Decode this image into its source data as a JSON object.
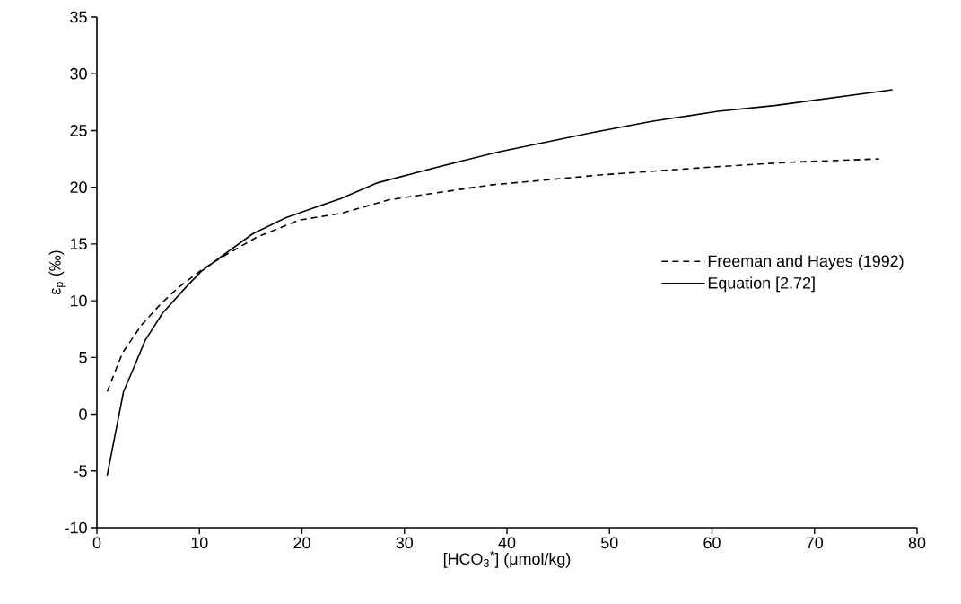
{
  "chart_data": {
    "type": "line",
    "xlabel": "[HCO$_{3}$$^{*}$] (μmol/kg)",
    "ylabel": "ε$_{p}$ (‰)",
    "xlim": [
      0,
      80
    ],
    "ylim": [
      -10,
      35
    ],
    "xticks": [
      0,
      10,
      20,
      30,
      40,
      50,
      60,
      70,
      80
    ],
    "yticks": [
      -10,
      -5,
      0,
      5,
      10,
      15,
      20,
      25,
      30,
      35
    ],
    "grid": false,
    "legend": "right",
    "marker": "none",
    "series": [
      {
        "name": "Freeman and Hayes (1992)",
        "color": "#000000",
        "line_style": "dashed",
        "x": [
          1.0,
          2.5,
          4.3,
          6.2,
          8.0,
          10.2,
          12.3,
          15.6,
          19.7,
          23.8,
          28.5,
          38.4,
          49.3,
          60.3,
          67.5,
          76.3
        ],
        "values": [
          2.0,
          5.4,
          7.8,
          9.7,
          11.2,
          12.7,
          13.9,
          15.6,
          17.1,
          17.7,
          18.9,
          20.2,
          21.1,
          21.8,
          22.2,
          22.5
        ]
      },
      {
        "name": "Equation [2.72]",
        "color": "#000000",
        "line_style": "solid",
        "x": [
          1.0,
          2.6,
          3.6,
          4.7,
          6.4,
          8.9,
          10.2,
          12.6,
          15.2,
          18.4,
          21.5,
          23.8,
          27.4,
          33.3,
          39.1,
          48.2,
          54.1,
          60.6,
          66.1,
          77.6
        ],
        "values": [
          -5.4,
          2.0,
          4.1,
          6.5,
          8.9,
          11.4,
          12.6,
          14.2,
          15.9,
          17.3,
          18.3,
          19.0,
          20.4,
          21.8,
          23.1,
          24.8,
          25.8,
          26.7,
          27.2,
          28.6
        ]
      }
    ]
  }
}
